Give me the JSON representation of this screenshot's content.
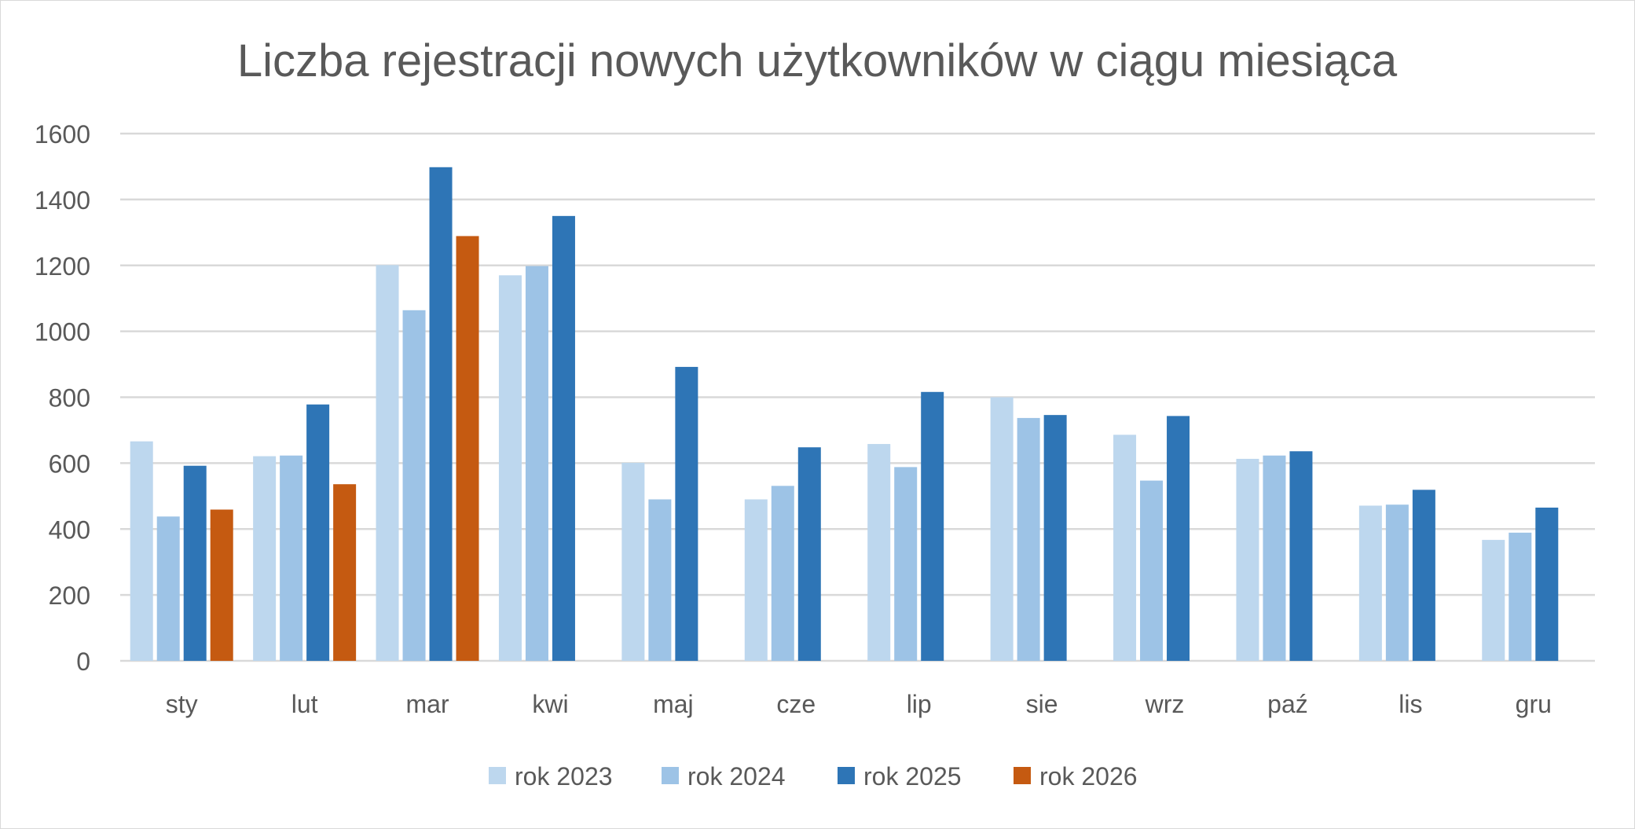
{
  "chart_data": {
    "type": "bar",
    "title": "Liczba rejestracji nowych użytkowników w ciągu miesiąca",
    "xlabel": "",
    "ylabel": "",
    "ylim": [
      0,
      1600
    ],
    "yticks": [
      0,
      200,
      400,
      600,
      800,
      1000,
      1200,
      1400,
      1600
    ],
    "grid": true,
    "legend_position": "bottom",
    "categories": [
      "sty",
      "lut",
      "mar",
      "kwi",
      "maj",
      "cze",
      "lip",
      "sie",
      "wrz",
      "paź",
      "lis",
      "gru"
    ],
    "series": [
      {
        "name": "rok 2023",
        "color": "#BDD7EE",
        "values": [
          666,
          621,
          1201,
          1170,
          601,
          490,
          658,
          800,
          686,
          613,
          471,
          367
        ]
      },
      {
        "name": "rok 2024",
        "color": "#9DC3E6",
        "values": [
          438,
          623,
          1064,
          1198,
          490,
          531,
          588,
          737,
          547,
          623,
          474,
          389
        ]
      },
      {
        "name": "rok 2025",
        "color": "#2E75B6",
        "values": [
          592,
          778,
          1498,
          1350,
          892,
          648,
          816,
          746,
          743,
          636,
          519,
          465
        ]
      },
      {
        "name": "rok 2026",
        "color": "#C55A11",
        "values": [
          459,
          536,
          1289,
          null,
          null,
          null,
          null,
          null,
          null,
          null,
          null,
          null
        ]
      }
    ]
  }
}
